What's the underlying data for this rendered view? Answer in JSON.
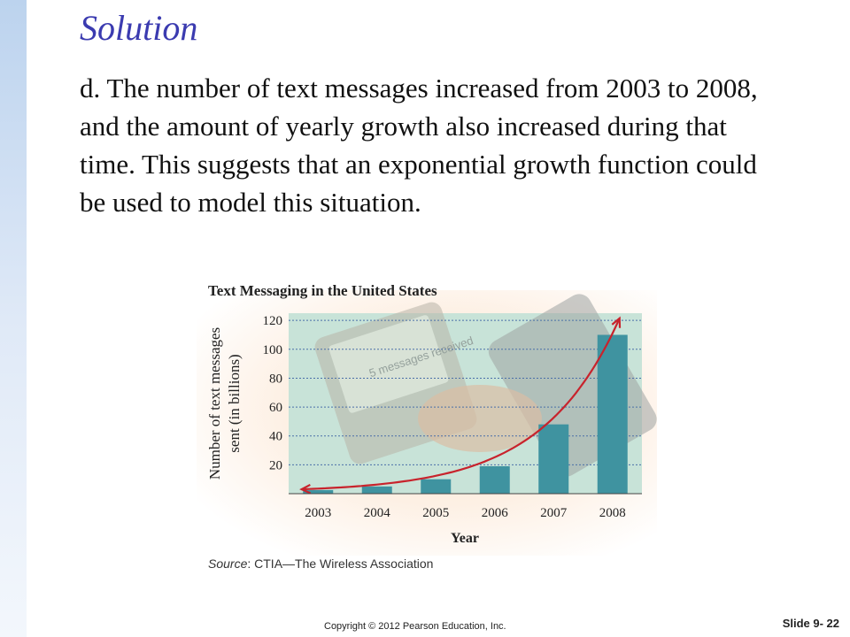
{
  "slide": {
    "title": "Solution",
    "body": "d.  The number of text messages increased from 2003 to 2008, and the amount of yearly growth also increased during that time. This suggests that an exponential growth function could be used to model this situation.",
    "copyright": "Copyright © 2012 Pearson Education, Inc.",
    "slide_number": "Slide 9- 22"
  },
  "chart_data": {
    "type": "bar",
    "title": "Text Messaging in the United States",
    "xlabel": "Year",
    "ylabel_line1": "Number of text messages",
    "ylabel_line2": "sent (in billions)",
    "categories": [
      "2003",
      "2004",
      "2005",
      "2006",
      "2007",
      "2008"
    ],
    "values": [
      2.5,
      5,
      10,
      19,
      48,
      110
    ],
    "ylim": [
      0,
      125
    ],
    "yticks": [
      20,
      40,
      60,
      80,
      100,
      120
    ],
    "grid": true,
    "source_label": "Source",
    "source_text": ": CTIA—The Wireless Association",
    "photo_text": "5 messages received",
    "bar_color": "#3f93a0",
    "curve_color": "#c8232c",
    "plot_bg": "#c8e3d8"
  }
}
